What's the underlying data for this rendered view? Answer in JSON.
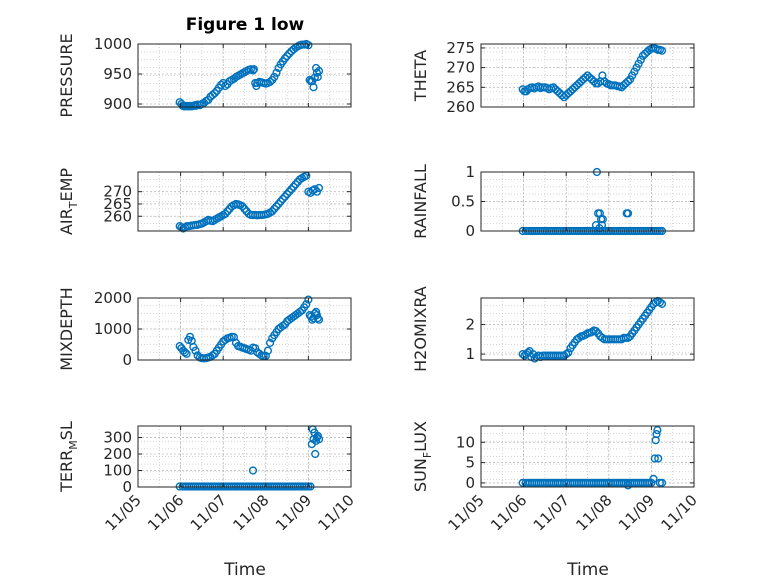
{
  "figure": {
    "title": "Figure 1 low",
    "xlabel": "Time",
    "x_ticks": [
      "11/05",
      "11/06",
      "11/07",
      "11/08",
      "11/09",
      "11/10"
    ],
    "marker_color": "#0072BD"
  },
  "chart_data": [
    {
      "type": "scatter",
      "ylabel": "PRESSURE",
      "xlabel": "Time",
      "title": "Figure 1 low",
      "xlim": [
        "11/05",
        "11/10"
      ],
      "ylim": [
        895,
        1000
      ],
      "yticks": [
        900,
        950,
        1000
      ],
      "grid": true,
      "x": [
        5.98,
        6.02,
        6.05,
        6.08,
        6.11,
        6.14,
        6.17,
        6.2,
        6.23,
        6.26,
        6.3,
        6.33,
        6.36,
        6.4,
        6.45,
        6.5,
        6.55,
        6.6,
        6.65,
        6.7,
        6.75,
        6.8,
        6.85,
        6.9,
        6.95,
        7.0,
        7.05,
        7.1,
        7.15,
        7.2,
        7.25,
        7.3,
        7.35,
        7.4,
        7.45,
        7.5,
        7.55,
        7.6,
        7.65,
        7.7,
        7.72,
        7.75,
        7.78,
        7.8,
        7.85,
        7.9,
        7.95,
        8.0,
        8.05,
        8.1,
        8.15,
        8.2,
        8.25,
        8.3,
        8.35,
        8.4,
        8.45,
        8.5,
        8.55,
        8.6,
        8.65,
        8.7,
        8.75,
        8.8,
        8.85,
        8.9,
        8.95,
        9.0,
        9.03,
        9.06,
        9.09,
        9.12,
        9.15,
        9.18,
        9.2,
        9.22,
        9.25
      ],
      "y": [
        903,
        900,
        897,
        896,
        896,
        897,
        896,
        896,
        897,
        896,
        897,
        898,
        897,
        899,
        898,
        900,
        902,
        905,
        907,
        912,
        915,
        918,
        922,
        927,
        932,
        935,
        930,
        933,
        938,
        940,
        942,
        945,
        947,
        949,
        951,
        953,
        955,
        957,
        958,
        956,
        958,
        935,
        930,
        935,
        937,
        936,
        935,
        934,
        935,
        937,
        940,
        945,
        952,
        960,
        966,
        971,
        976,
        980,
        984,
        988,
        991,
        994,
        996,
        998,
        999,
        999,
        1000,
        998,
        940,
        938,
        938,
        928,
        944,
        960,
        952,
        945,
        955
      ]
    },
    {
      "type": "scatter",
      "ylabel": "THETA",
      "xlabel": "Time",
      "xlim": [
        "11/05",
        "11/10"
      ],
      "ylim": [
        260,
        276
      ],
      "yticks": [
        260,
        265,
        270,
        275
      ],
      "grid": true,
      "x": [
        5.98,
        6.02,
        6.06,
        6.1,
        6.15,
        6.2,
        6.25,
        6.3,
        6.35,
        6.4,
        6.45,
        6.5,
        6.55,
        6.6,
        6.65,
        6.7,
        6.75,
        6.8,
        6.85,
        6.9,
        6.95,
        7.0,
        7.05,
        7.1,
        7.15,
        7.2,
        7.25,
        7.3,
        7.35,
        7.4,
        7.45,
        7.5,
        7.55,
        7.6,
        7.65,
        7.7,
        7.75,
        7.8,
        7.85,
        7.9,
        7.95,
        8.0,
        8.05,
        8.1,
        8.15,
        8.2,
        8.25,
        8.3,
        8.35,
        8.4,
        8.45,
        8.5,
        8.55,
        8.6,
        8.65,
        8.7,
        8.75,
        8.8,
        8.85,
        8.9,
        8.95,
        9.0,
        9.05,
        9.1,
        9.15,
        9.2,
        9.25
      ],
      "y": [
        264.5,
        264,
        264,
        264.5,
        264.8,
        265,
        264.7,
        265,
        265.2,
        264.8,
        265,
        265,
        264.8,
        264.5,
        264.8,
        265,
        264.5,
        264,
        263.5,
        263,
        262.5,
        263,
        263.5,
        264,
        264.5,
        265,
        265.5,
        266,
        266.5,
        267,
        267.5,
        268,
        267.5,
        267,
        266.5,
        266,
        266,
        266.5,
        268,
        266.5,
        266,
        265.8,
        265.5,
        265.5,
        265.5,
        265.3,
        265.2,
        265,
        265.5,
        266,
        266.5,
        267,
        268,
        269,
        270,
        271,
        272,
        273,
        273.5,
        274,
        274.5,
        274.8,
        275,
        274.8,
        274.5,
        274.5,
        274.3
      ]
    },
    {
      "type": "scatter",
      "ylabel": "AIR_TEMP",
      "xlabel": "Time",
      "xlim": [
        "11/05",
        "11/10"
      ],
      "ylim": [
        254,
        278
      ],
      "yticks": [
        260,
        265,
        270
      ],
      "grid": true,
      "x": [
        5.98,
        6.02,
        6.06,
        6.1,
        6.15,
        6.2,
        6.25,
        6.3,
        6.35,
        6.4,
        6.45,
        6.5,
        6.55,
        6.6,
        6.65,
        6.7,
        6.75,
        6.8,
        6.85,
        6.9,
        6.95,
        7.0,
        7.05,
        7.1,
        7.15,
        7.2,
        7.25,
        7.3,
        7.35,
        7.4,
        7.45,
        7.5,
        7.55,
        7.6,
        7.65,
        7.7,
        7.75,
        7.8,
        7.85,
        7.9,
        7.95,
        8.0,
        8.05,
        8.1,
        8.15,
        8.2,
        8.25,
        8.3,
        8.35,
        8.4,
        8.45,
        8.5,
        8.55,
        8.6,
        8.65,
        8.7,
        8.75,
        8.8,
        8.85,
        8.9,
        8.95,
        9.0,
        9.05,
        9.1,
        9.15,
        9.2,
        9.25
      ],
      "y": [
        256,
        255.5,
        255,
        255.5,
        256,
        256,
        256.2,
        256.3,
        256.5,
        256.5,
        256.8,
        257,
        257.5,
        258,
        258.5,
        258.2,
        258,
        258.5,
        259,
        259.5,
        260,
        260.5,
        261,
        262,
        263,
        264,
        264.5,
        265,
        264.8,
        264.5,
        264,
        263,
        262,
        261,
        260.5,
        260.5,
        260.5,
        260.4,
        260.5,
        260.5,
        260.6,
        260.8,
        261,
        261.5,
        262,
        263,
        264,
        265,
        266,
        267,
        268,
        269,
        270,
        271,
        272,
        273,
        274,
        275,
        275.5,
        276,
        276.5,
        270,
        269.5,
        270.5,
        271,
        270,
        271.5
      ]
    },
    {
      "type": "scatter",
      "ylabel": "RAINFALL",
      "xlabel": "Time",
      "xlim": [
        "11/05",
        "11/10"
      ],
      "ylim": [
        0,
        1
      ],
      "yticks": [
        0,
        0.5,
        1
      ],
      "grid": true,
      "x": [
        5.98,
        6.05,
        6.1,
        6.15,
        6.2,
        6.25,
        6.3,
        6.35,
        6.4,
        6.45,
        6.5,
        6.55,
        6.6,
        6.65,
        6.7,
        6.75,
        6.8,
        6.85,
        6.9,
        6.95,
        7.0,
        7.05,
        7.1,
        7.15,
        7.2,
        7.25,
        7.3,
        7.35,
        7.4,
        7.45,
        7.5,
        7.55,
        7.6,
        7.65,
        7.7,
        7.75,
        7.8,
        7.85,
        7.9,
        7.95,
        8.0,
        8.05,
        8.1,
        8.15,
        8.2,
        8.25,
        8.3,
        8.35,
        8.4,
        8.45,
        8.5,
        8.55,
        8.6,
        8.65,
        8.7,
        8.75,
        8.8,
        8.85,
        8.9,
        8.95,
        9.0,
        9.05,
        9.1,
        9.15,
        9.2,
        9.25,
        7.72,
        7.75,
        7.79,
        7.82,
        7.86,
        8.42,
        8.45,
        7.7,
        7.78,
        7.84
      ],
      "y": [
        0,
        0,
        0,
        0,
        0,
        0,
        0,
        0,
        0,
        0,
        0,
        0,
        0,
        0,
        0,
        0,
        0,
        0,
        0,
        0,
        0,
        0,
        0,
        0,
        0,
        0,
        0,
        0,
        0,
        0,
        0,
        0,
        0,
        0,
        0,
        0,
        0,
        0,
        0,
        0,
        0,
        0,
        0,
        0,
        0,
        0,
        0,
        0,
        0,
        0,
        0,
        0,
        0,
        0,
        0,
        0,
        0,
        0,
        0,
        0,
        0,
        0,
        0,
        0,
        0,
        0,
        1.0,
        0.3,
        0.3,
        0.2,
        0.2,
        0.3,
        0.3,
        0.1,
        0.05,
        0.1
      ]
    },
    {
      "type": "scatter",
      "ylabel": "MIXDEPTH",
      "xlabel": "Time",
      "xlim": [
        "11/05",
        "11/10"
      ],
      "ylim": [
        0,
        2000
      ],
      "yticks": [
        0,
        1000,
        2000
      ],
      "grid": true,
      "x": [
        5.98,
        6.02,
        6.06,
        6.1,
        6.14,
        6.18,
        6.22,
        6.26,
        6.3,
        6.35,
        6.4,
        6.45,
        6.5,
        6.55,
        6.6,
        6.65,
        6.7,
        6.75,
        6.8,
        6.85,
        6.9,
        6.95,
        7.0,
        7.05,
        7.1,
        7.15,
        7.2,
        7.25,
        7.3,
        7.35,
        7.4,
        7.45,
        7.5,
        7.55,
        7.6,
        7.65,
        7.7,
        7.75,
        7.8,
        7.85,
        7.9,
        7.95,
        8.0,
        8.05,
        8.1,
        8.15,
        8.2,
        8.25,
        8.3,
        8.35,
        8.4,
        8.45,
        8.5,
        8.55,
        8.6,
        8.65,
        8.7,
        8.75,
        8.8,
        8.85,
        8.9,
        8.95,
        9.0,
        9.03,
        9.06,
        9.09,
        9.12,
        9.15,
        9.18,
        9.2,
        9.22,
        9.25
      ],
      "y": [
        450,
        380,
        300,
        250,
        200,
        650,
        750,
        620,
        420,
        300,
        150,
        80,
        60,
        50,
        60,
        80,
        100,
        150,
        200,
        300,
        400,
        500,
        600,
        650,
        700,
        720,
        750,
        740,
        550,
        450,
        430,
        400,
        380,
        350,
        330,
        300,
        400,
        380,
        250,
        200,
        150,
        120,
        130,
        300,
        550,
        700,
        800,
        900,
        1000,
        1050,
        1100,
        1150,
        1250,
        1300,
        1350,
        1400,
        1450,
        1500,
        1550,
        1600,
        1700,
        1800,
        1950,
        1450,
        1400,
        1300,
        1350,
        1500,
        1550,
        1450,
        1350,
        1300
      ]
    },
    {
      "type": "scatter",
      "ylabel": "H2OMIXRA",
      "xlabel": "Time",
      "xlim": [
        "11/05",
        "11/10"
      ],
      "ylim": [
        0.8,
        2.9
      ],
      "yticks": [
        1,
        2
      ],
      "grid": true,
      "x": [
        5.98,
        6.02,
        6.06,
        6.1,
        6.14,
        6.18,
        6.22,
        6.26,
        6.3,
        6.35,
        6.4,
        6.45,
        6.5,
        6.55,
        6.6,
        6.65,
        6.7,
        6.75,
        6.8,
        6.85,
        6.9,
        6.95,
        7.0,
        7.05,
        7.1,
        7.15,
        7.2,
        7.25,
        7.3,
        7.35,
        7.4,
        7.45,
        7.5,
        7.55,
        7.6,
        7.65,
        7.7,
        7.75,
        7.8,
        7.85,
        7.9,
        7.95,
        8.0,
        8.05,
        8.1,
        8.15,
        8.2,
        8.25,
        8.3,
        8.35,
        8.4,
        8.45,
        8.5,
        8.55,
        8.6,
        8.65,
        8.7,
        8.75,
        8.8,
        8.85,
        8.9,
        8.95,
        9.0,
        9.05,
        9.1,
        9.15,
        9.2,
        9.25
      ],
      "y": [
        1.0,
        0.95,
        1.0,
        1.05,
        1.1,
        0.9,
        1.0,
        0.85,
        0.9,
        0.95,
        0.9,
        0.95,
        0.95,
        0.95,
        0.95,
        0.95,
        0.95,
        0.95,
        0.95,
        0.95,
        0.95,
        0.95,
        1.0,
        1.05,
        1.2,
        1.3,
        1.4,
        1.5,
        1.55,
        1.6,
        1.62,
        1.65,
        1.7,
        1.72,
        1.75,
        1.8,
        1.78,
        1.7,
        1.6,
        1.55,
        1.5,
        1.5,
        1.5,
        1.5,
        1.5,
        1.5,
        1.5,
        1.5,
        1.5,
        1.55,
        1.55,
        1.55,
        1.6,
        1.7,
        1.8,
        1.9,
        2.0,
        2.1,
        2.2,
        2.3,
        2.4,
        2.5,
        2.6,
        2.7,
        2.75,
        2.8,
        2.75,
        2.7
      ]
    },
    {
      "type": "scatter",
      "ylabel": "TERR_MSL",
      "xlabel": "Time",
      "xlim": [
        "11/05",
        "11/10"
      ],
      "ylim": [
        0,
        370
      ],
      "yticks": [
        0,
        100,
        200,
        300
      ],
      "grid": true,
      "x": [
        5.98,
        6.05,
        6.1,
        6.15,
        6.2,
        6.25,
        6.3,
        6.35,
        6.4,
        6.45,
        6.5,
        6.55,
        6.6,
        6.65,
        6.7,
        6.75,
        6.8,
        6.85,
        6.9,
        6.95,
        7.0,
        7.05,
        7.1,
        7.15,
        7.2,
        7.25,
        7.3,
        7.35,
        7.4,
        7.45,
        7.5,
        7.55,
        7.6,
        7.65,
        7.7,
        7.75,
        7.8,
        7.85,
        7.9,
        7.95,
        8.0,
        8.05,
        8.1,
        8.15,
        8.2,
        8.25,
        8.3,
        8.35,
        8.4,
        8.45,
        8.5,
        8.55,
        8.6,
        8.65,
        8.7,
        8.75,
        8.8,
        8.85,
        8.9,
        8.95,
        9.0,
        9.05,
        7.7,
        9.08,
        9.1,
        9.12,
        9.14,
        9.16,
        9.18,
        9.2,
        9.22,
        9.25
      ],
      "y": [
        3,
        3,
        3,
        3,
        3,
        3,
        3,
        3,
        3,
        3,
        3,
        3,
        3,
        3,
        3,
        3,
        3,
        3,
        3,
        3,
        3,
        3,
        3,
        3,
        3,
        3,
        3,
        3,
        3,
        3,
        3,
        3,
        3,
        3,
        3,
        3,
        3,
        3,
        3,
        3,
        3,
        3,
        3,
        3,
        3,
        3,
        3,
        3,
        3,
        3,
        3,
        3,
        3,
        3,
        3,
        3,
        3,
        3,
        3,
        3,
        3,
        3,
        100,
        260,
        350,
        290,
        330,
        200,
        280,
        300,
        310,
        290
      ]
    },
    {
      "type": "scatter",
      "ylabel": "SUN_FLUX",
      "xlabel": "Time",
      "xlim": [
        "11/05",
        "11/10"
      ],
      "ylim": [
        -1,
        14
      ],
      "yticks": [
        0,
        5,
        10
      ],
      "grid": true,
      "x": [
        5.98,
        6.05,
        6.1,
        6.15,
        6.2,
        6.25,
        6.3,
        6.35,
        6.4,
        6.45,
        6.5,
        6.55,
        6.6,
        6.65,
        6.7,
        6.75,
        6.8,
        6.85,
        6.9,
        6.95,
        7.0,
        7.05,
        7.1,
        7.15,
        7.2,
        7.25,
        7.3,
        7.35,
        7.4,
        7.45,
        7.5,
        7.55,
        7.6,
        7.65,
        7.7,
        7.75,
        7.8,
        7.85,
        7.9,
        7.95,
        8.0,
        8.05,
        8.1,
        8.15,
        8.2,
        8.25,
        8.3,
        8.35,
        8.4,
        8.45,
        8.5,
        8.55,
        8.6,
        8.65,
        8.7,
        8.75,
        8.8,
        8.85,
        8.9,
        8.95,
        9.0,
        8.45,
        9.05,
        9.08,
        9.1,
        9.12,
        9.14,
        9.16,
        9.2,
        9.25
      ],
      "y": [
        0,
        0,
        0,
        0,
        0,
        0,
        0,
        0,
        0,
        0,
        0,
        0,
        0,
        0,
        0,
        0,
        0,
        0,
        0,
        0,
        0,
        0,
        0,
        0,
        0,
        0,
        0,
        0,
        0,
        0,
        0,
        0,
        0,
        0,
        0,
        0,
        0,
        0,
        0,
        0,
        0,
        0,
        0,
        0,
        0,
        0,
        0,
        0,
        0,
        0,
        0,
        0,
        0,
        0,
        0,
        0,
        0,
        0,
        0,
        0,
        0,
        -0.6,
        1,
        6,
        10.5,
        12,
        13,
        6,
        0,
        0
      ]
    }
  ]
}
